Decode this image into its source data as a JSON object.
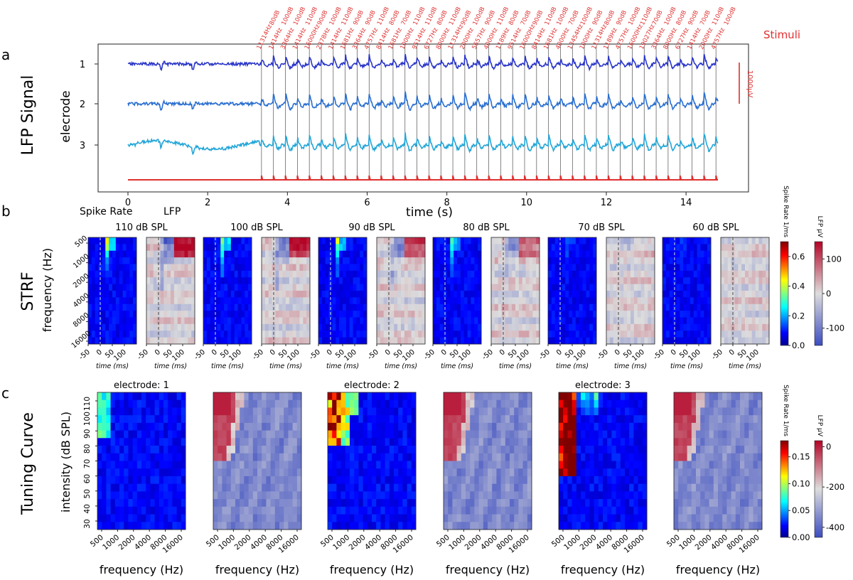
{
  "figure": {
    "panel_a": "a",
    "panel_b": "b",
    "panel_c": "c",
    "row_a_title": "LFP Signal",
    "row_b_title": "STRF",
    "row_c_title": "Tuning Curve"
  },
  "colors": {
    "stimuli": "#e03030",
    "electrode_1": "#2a36c8",
    "electrode_2": "#2a6fd0",
    "electrode_3": "#22a6d8",
    "axis": "#222222"
  },
  "chart_data": [
    {
      "type": "line",
      "panel": "a",
      "title": "LFP Signal",
      "xlabel": "time (s)",
      "ylabel": "elecrode",
      "xlim": [
        -0.3,
        15.5
      ],
      "xticks": [
        0,
        2,
        4,
        6,
        8,
        10,
        12,
        14
      ],
      "yticks": [
        "1",
        "2",
        "3"
      ],
      "scale_bar_label": "1000μV",
      "stimuli_label": "Stimuli",
      "stimulus_onset_s": 3.35,
      "stimulus_interval_s": 0.3,
      "stimulus_count": 39,
      "stimulus_labels": [
        "11314Hz 80dB",
        "1414Hz 100dB",
        "3364Hz 100dB",
        "1414Hz 110dB",
        "16000Hz 90dB",
        "2378Hz 100dB",
        "1414Hz 110dB",
        "1681Hz 90dB",
        "3364Hz 90dB",
        "4757Hz 110dB",
        "8414Hz 80dB",
        "1681Hz 70dB",
        "1000Hz 110dB",
        "9514Hz 110dB",
        "6727Hz 80dB",
        "8000Hz 110dB",
        "11314Hz 90dB",
        "2000Hz 100dB",
        "5657Hz 90dB",
        "4000Hz 110dB",
        "1189Hz 80dB",
        "9514Hz 70dB",
        "16000Hz 90dB",
        "8414Hz 110dB",
        "1681Hz 100dB",
        "4000Hz 70dB",
        "13454Hz 100dB",
        "1000Hz 90dB",
        "11314Hz 80dB",
        "1189Hz 90dB",
        "4757Hz 100dB",
        "16000Hz 110dB",
        "19027Hz 70dB",
        "3364Hz 100dB",
        "8000Hz 80dB",
        "6727Hz 90dB",
        "1414Hz 70dB",
        "2000Hz 110dB",
        "4757Hz 100dB"
      ],
      "series": [
        {
          "name": "1",
          "baseline_uV": 0
        },
        {
          "name": "2",
          "baseline_uV": -1000
        },
        {
          "name": "3",
          "baseline_uV": -2000
        },
        {
          "name": "Stimuli",
          "baseline_uV": -3000
        }
      ]
    },
    {
      "type": "heatmap",
      "panel": "b",
      "title": "STRF",
      "ylabel": "frequency (Hz)",
      "xlabel": "time (ms)",
      "column_labels": [
        "Spike Rate",
        "LFP"
      ],
      "yticks": [
        "500",
        "1000",
        "2000",
        "4000",
        "8000",
        "16000"
      ],
      "xticks": [
        "-50",
        "0",
        "50",
        "100"
      ],
      "xlim": [
        -50,
        150
      ],
      "intensities": [
        "110 dB SPL",
        "100 dB SPL",
        "90 dB SPL",
        "80 dB SPL",
        "70 dB SPL",
        "60 dB SPL"
      ],
      "spike_peak": [
        0.55,
        0.5,
        0.45,
        0.35,
        0.1,
        0.03
      ],
      "lfp_peak_uV": [
        150,
        140,
        120,
        90,
        20,
        5
      ],
      "colorbar_spike": {
        "label": "Spike Rate 1/ms",
        "ticks": [
          "0.6",
          "0.4",
          "0.2",
          "0.0"
        ],
        "range": [
          0,
          0.7
        ]
      },
      "colorbar_lfp": {
        "label": "LFP μV",
        "ticks": [
          "100",
          "0",
          "-100"
        ],
        "range": [
          -150,
          150
        ]
      }
    },
    {
      "type": "heatmap",
      "panel": "c",
      "title": "Tuning Curve",
      "ylabel": "intensity (dB SPL)",
      "xlabel": "frequency (Hz)",
      "yticks": [
        "110",
        "100",
        "90",
        "80",
        "70",
        "60",
        "50",
        "40",
        "30"
      ],
      "xticks": [
        "500",
        "1000",
        "2000",
        "4000",
        "8000",
        "16000"
      ],
      "electrodes": [
        "electrode: 1",
        "electrode: 2",
        "electrode: 3"
      ],
      "spike_peak": [
        0.09,
        0.18,
        0.18
      ],
      "lfp_min_uV": [
        -380,
        -400,
        -360
      ],
      "colorbar_spike": {
        "label": "Spike Rate 1/ms",
        "ticks": [
          "0.15",
          "0.10",
          "0.05",
          "0.00"
        ],
        "range": [
          0,
          0.18
        ]
      },
      "colorbar_lfp": {
        "label": "LFP μV",
        "ticks": [
          "0",
          "-200",
          "-400"
        ],
        "range": [
          -450,
          30
        ]
      }
    }
  ]
}
